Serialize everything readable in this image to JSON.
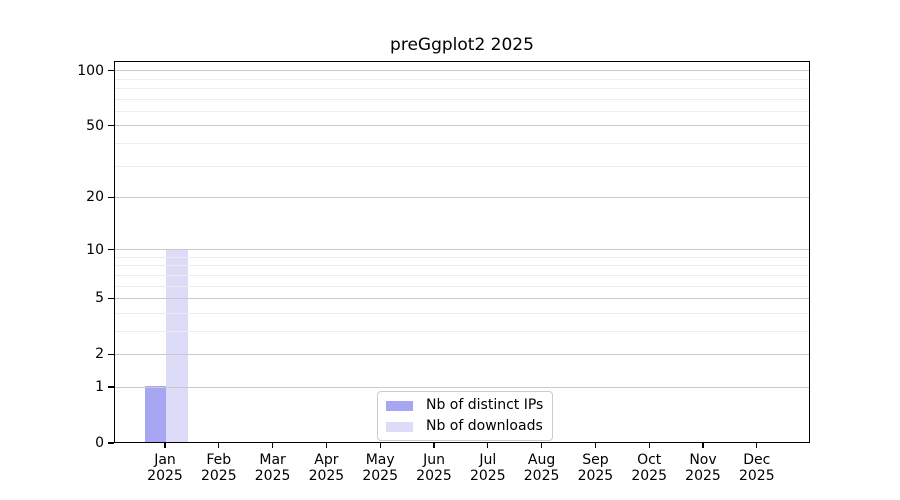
{
  "chart_data": {
    "type": "bar",
    "title": "preGgplot2 2025",
    "months": [
      "Jan",
      "Feb",
      "Mar",
      "Apr",
      "May",
      "Jun",
      "Jul",
      "Aug",
      "Sep",
      "Oct",
      "Nov",
      "Dec"
    ],
    "year": "2025",
    "series": [
      {
        "name": "Nb of distinct IPs",
        "color": "#a6a6f2",
        "values": [
          1,
          0,
          0,
          0,
          0,
          0,
          0,
          0,
          0,
          0,
          0,
          0
        ]
      },
      {
        "name": "Nb of downloads",
        "color": "#dcdcf8",
        "values": [
          10,
          0,
          0,
          0,
          0,
          0,
          0,
          0,
          0,
          0,
          0,
          0
        ]
      }
    ],
    "yticks": [
      0,
      1,
      2,
      5,
      10,
      20,
      50,
      100
    ],
    "yticks_minor": [
      3,
      4,
      6,
      7,
      8,
      9,
      30,
      40,
      60,
      70,
      80,
      90
    ],
    "scale": "log1p",
    "ylim": [
      0,
      113
    ],
    "xlabel": "",
    "ylabel": "",
    "grid": true,
    "legend_position": "lower center",
    "colors": {
      "axis": "#000000",
      "grid_major": "#c9c9c9",
      "grid_minor": "#ececec",
      "background": "#ffffff"
    }
  }
}
